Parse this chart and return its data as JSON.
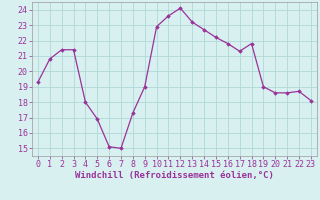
{
  "x": [
    0,
    1,
    2,
    3,
    4,
    5,
    6,
    7,
    8,
    9,
    10,
    11,
    12,
    13,
    14,
    15,
    16,
    17,
    18,
    19,
    20,
    21,
    22,
    23
  ],
  "y": [
    19.3,
    20.8,
    21.4,
    21.4,
    18.0,
    16.9,
    15.1,
    15.0,
    17.3,
    19.0,
    22.9,
    23.6,
    24.1,
    23.2,
    22.7,
    22.2,
    21.8,
    21.3,
    21.8,
    19.0,
    18.6,
    18.6,
    18.7,
    18.1
  ],
  "line_color": "#993399",
  "marker": "D",
  "marker_size": 1.8,
  "line_width": 0.9,
  "bg_color": "#d8f0f0",
  "grid_color": "#b0d8d8",
  "xlabel": "Windchill (Refroidissement éolien,°C)",
  "xlabel_fontsize": 6.5,
  "tick_fontsize": 6.0,
  "ylim": [
    14.5,
    24.5
  ],
  "yticks": [
    15,
    16,
    17,
    18,
    19,
    20,
    21,
    22,
    23,
    24
  ],
  "xticks": [
    0,
    1,
    2,
    3,
    4,
    5,
    6,
    7,
    8,
    9,
    10,
    11,
    12,
    13,
    14,
    15,
    16,
    17,
    18,
    19,
    20,
    21,
    22,
    23
  ],
  "xlim": [
    -0.5,
    23.5
  ]
}
